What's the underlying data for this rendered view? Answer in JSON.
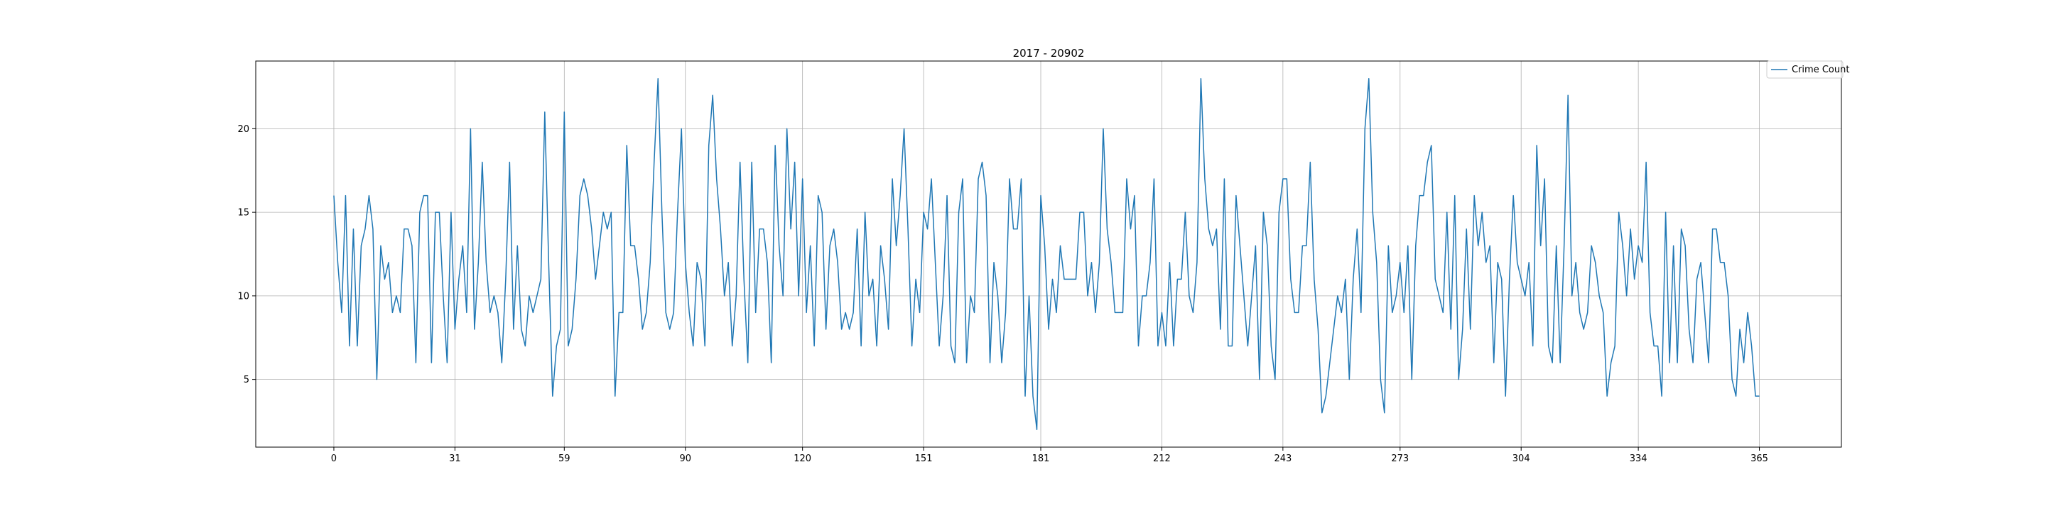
{
  "chart_data": {
    "type": "line",
    "title": "2017 - 20902",
    "xlabel": "",
    "ylabel": "",
    "xlim": [
      -20,
      386
    ],
    "ylim": [
      0.95,
      24.05
    ],
    "xticks": [
      0,
      31,
      59,
      90,
      120,
      151,
      181,
      212,
      243,
      273,
      304,
      334,
      365
    ],
    "yticks": [
      5,
      10,
      15,
      20
    ],
    "grid": true,
    "legend": "top-right",
    "series": [
      {
        "name": "Crime Count",
        "color": "#1f77b4",
        "values": [
          16,
          12,
          9,
          16,
          7,
          14,
          7,
          13,
          14,
          16,
          14,
          5,
          13,
          11,
          12,
          9,
          10,
          9,
          14,
          14,
          13,
          6,
          15,
          16,
          16,
          6,
          15,
          15,
          10,
          6,
          15,
          8,
          11,
          13,
          9,
          20,
          8,
          12,
          18,
          12,
          9,
          10,
          9,
          6,
          11,
          18,
          8,
          13,
          8,
          7,
          10,
          9,
          10,
          11,
          21,
          12,
          4,
          7,
          8,
          21,
          7,
          8,
          11,
          16,
          17,
          16,
          14,
          11,
          13,
          15,
          14,
          15,
          4,
          9,
          9,
          19,
          13,
          13,
          11,
          8,
          9,
          12,
          18,
          23,
          15,
          9,
          8,
          9,
          15,
          20,
          12,
          9,
          7,
          12,
          11,
          7,
          19,
          22,
          17,
          14,
          10,
          12,
          7,
          10,
          18,
          11,
          6,
          18,
          9,
          14,
          14,
          12,
          6,
          19,
          13,
          10,
          20,
          14,
          18,
          10,
          17,
          9,
          13,
          7,
          16,
          15,
          8,
          13,
          14,
          12,
          8,
          9,
          8,
          9,
          14,
          7,
          15,
          10,
          11,
          7,
          13,
          11,
          8,
          17,
          13,
          16,
          20,
          14,
          7,
          11,
          9,
          15,
          14,
          17,
          12,
          7,
          10,
          16,
          7,
          6,
          15,
          17,
          6,
          10,
          9,
          17,
          18,
          16,
          6,
          12,
          10,
          6,
          9,
          17,
          14,
          14,
          17,
          4,
          10,
          4,
          2,
          16,
          13,
          8,
          11,
          9,
          13,
          11,
          11,
          11,
          11,
          15,
          15,
          10,
          12,
          9,
          12,
          20,
          14,
          12,
          9,
          9,
          9,
          17,
          14,
          16,
          7,
          10,
          10,
          12,
          17,
          7,
          9,
          7,
          12,
          7,
          11,
          11,
          15,
          10,
          9,
          12,
          23,
          17,
          14,
          13,
          14,
          8,
          17,
          7,
          7,
          16,
          13,
          10,
          7,
          10,
          13,
          5,
          15,
          13,
          7,
          5,
          15,
          17,
          17,
          11,
          9,
          9,
          13,
          13,
          18,
          11,
          8,
          3,
          4,
          6,
          8,
          10,
          9,
          11,
          5,
          11,
          14,
          9,
          20,
          23,
          15,
          12,
          5,
          3,
          13,
          9,
          10,
          12,
          9,
          13,
          5,
          13,
          16,
          16,
          18,
          19,
          11,
          10,
          9,
          15,
          8,
          16,
          5,
          8,
          14,
          8,
          16,
          13,
          15,
          12,
          13,
          6,
          12,
          11,
          4,
          11,
          16,
          12,
          11,
          10,
          12,
          7,
          19,
          13,
          17,
          7,
          6,
          13,
          6,
          13,
          22,
          10,
          12,
          9,
          8,
          9,
          13,
          12,
          10,
          9,
          4,
          6,
          7,
          15,
          13,
          10,
          14,
          11,
          13,
          12,
          18,
          9,
          7,
          7,
          4,
          15,
          6,
          13,
          6,
          14,
          13,
          8,
          6,
          11,
          12,
          9,
          6,
          14,
          14,
          12,
          12,
          10,
          5,
          4,
          8,
          6,
          9,
          7,
          4,
          4
        ]
      }
    ]
  }
}
